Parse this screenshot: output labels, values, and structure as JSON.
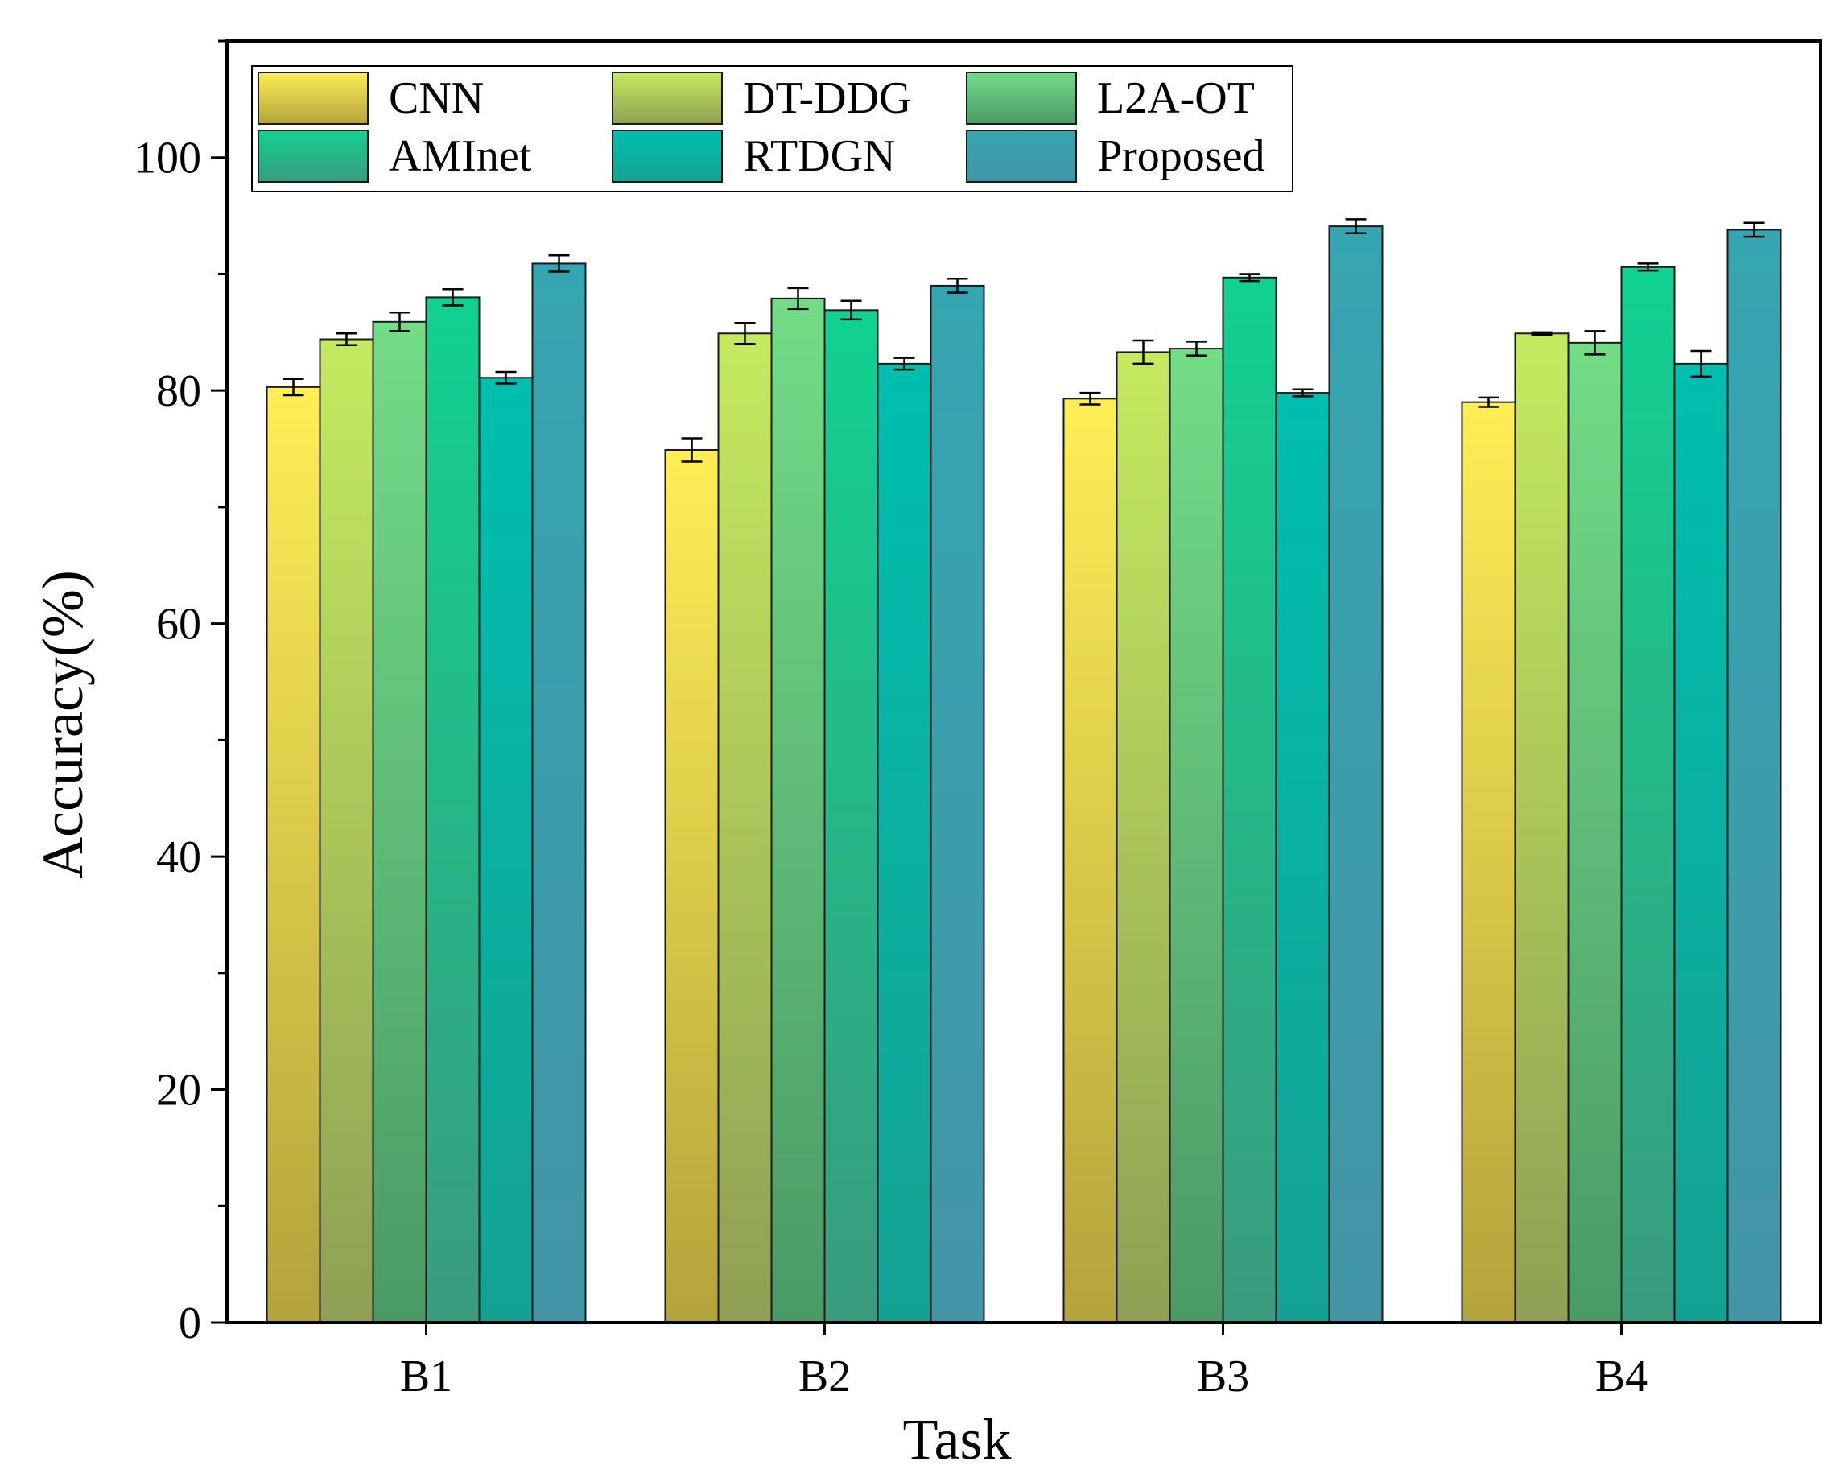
{
  "chart_data": {
    "type": "bar",
    "xlabel": "Task",
    "ylabel": "Accuracy(%)",
    "ylim": [
      0,
      110
    ],
    "yticks": [
      0,
      20,
      40,
      60,
      80,
      100
    ],
    "categories": [
      "B1",
      "B2",
      "B3",
      "B4"
    ],
    "legend_position": "top-left",
    "grid": false,
    "series": [
      {
        "name": "CNN",
        "values": [
          80.3,
          74.9,
          79.3,
          79.0
        ],
        "errors": [
          0.7,
          1.0,
          0.5,
          0.4
        ],
        "color_top": "#ffee55",
        "color_bottom": "#b3a33c"
      },
      {
        "name": "DT-DDG",
        "values": [
          84.4,
          84.9,
          83.3,
          84.9
        ],
        "errors": [
          0.5,
          0.9,
          1.0,
          0.1
        ],
        "color_top": "#c5ea5f",
        "color_bottom": "#8f9f54"
      },
      {
        "name": "L2A-OT",
        "values": [
          85.9,
          87.9,
          83.6,
          84.1
        ],
        "errors": [
          0.8,
          0.9,
          0.6,
          1.0
        ],
        "color_top": "#73dc87",
        "color_bottom": "#4a9a66"
      },
      {
        "name": "AMInet",
        "values": [
          88.0,
          86.9,
          89.7,
          90.6
        ],
        "errors": [
          0.7,
          0.8,
          0.3,
          0.3
        ],
        "color_top": "#11d191",
        "color_bottom": "#3a9b7f"
      },
      {
        "name": "RTDGN",
        "values": [
          81.1,
          82.3,
          79.8,
          82.3
        ],
        "errors": [
          0.5,
          0.5,
          0.3,
          1.1
        ],
        "color_top": "#00bfae",
        "color_bottom": "#14a193"
      },
      {
        "name": "Proposed",
        "values": [
          90.9,
          89.0,
          94.1,
          93.8
        ],
        "errors": [
          0.7,
          0.6,
          0.6,
          0.6
        ],
        "color_top": "#35a6b1",
        "color_bottom": "#4394a4"
      }
    ]
  }
}
